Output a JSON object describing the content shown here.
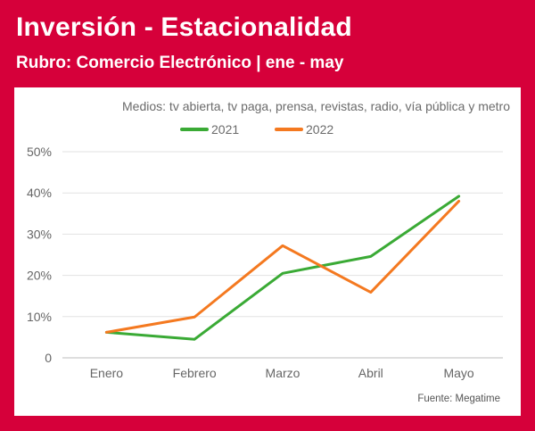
{
  "header": {
    "title": "Inversión - Estacionalidad",
    "subtitle": "Rubro: Comercio Electrónico | ene - may"
  },
  "colors": {
    "background": "#d6003a",
    "series_2021": "#3aaa35",
    "series_2022": "#f47920",
    "grid": "#e2e2e2"
  },
  "chart_data": {
    "type": "line",
    "title": "Inversión - Estacionalidad",
    "subtitle": "Rubro: Comercio Electrónico | ene - may",
    "note": "Medios: tv abierta, tv paga, prensa, revistas, radio, vía pública y metro",
    "source": "Fuente: Megatime",
    "categories": [
      "Enero",
      "Febrero",
      "Marzo",
      "Abril",
      "Mayo"
    ],
    "series": [
      {
        "name": "2021",
        "values": [
          6.2,
          4.5,
          20.5,
          24.6,
          39.2
        ]
      },
      {
        "name": "2022",
        "values": [
          6.2,
          9.9,
          27.2,
          15.9,
          38.0
        ]
      }
    ],
    "yticks": [
      "0",
      "10%",
      "20%",
      "30%",
      "40%",
      "50%"
    ],
    "ylim": [
      0,
      50
    ],
    "grid": true,
    "legend": "top-center"
  }
}
